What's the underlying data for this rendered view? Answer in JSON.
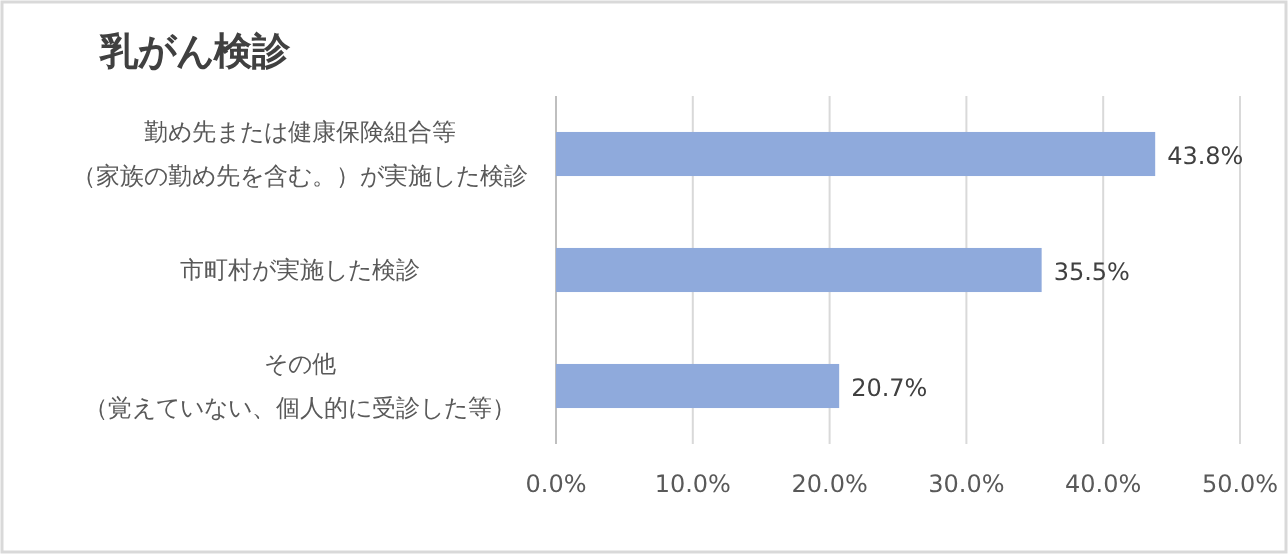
{
  "chart_data": {
    "type": "bar",
    "orientation": "horizontal",
    "title": "乳がん検診",
    "categories": [
      "勤め先または健康保険組合等（家族の勤め先を含む。）が実施した検診",
      "市町村が実施した検診",
      "その他（覚えていない、個人的に受診した等）"
    ],
    "values": [
      43.8,
      35.5,
      20.7
    ],
    "value_labels": [
      "43.8%",
      "35.5%",
      "20.7%"
    ],
    "color": "#8faadc",
    "xlim": [
      0,
      50
    ],
    "xticks": [
      {
        "value": 0,
        "label": "0.0%"
      },
      {
        "value": 10,
        "label": "10.0%"
      },
      {
        "value": 20,
        "label": "20.0%"
      },
      {
        "value": 30,
        "label": "30.0%"
      },
      {
        "value": 40,
        "label": "40.0%"
      },
      {
        "value": 50,
        "label": "50.0%"
      }
    ],
    "grid": "x"
  }
}
